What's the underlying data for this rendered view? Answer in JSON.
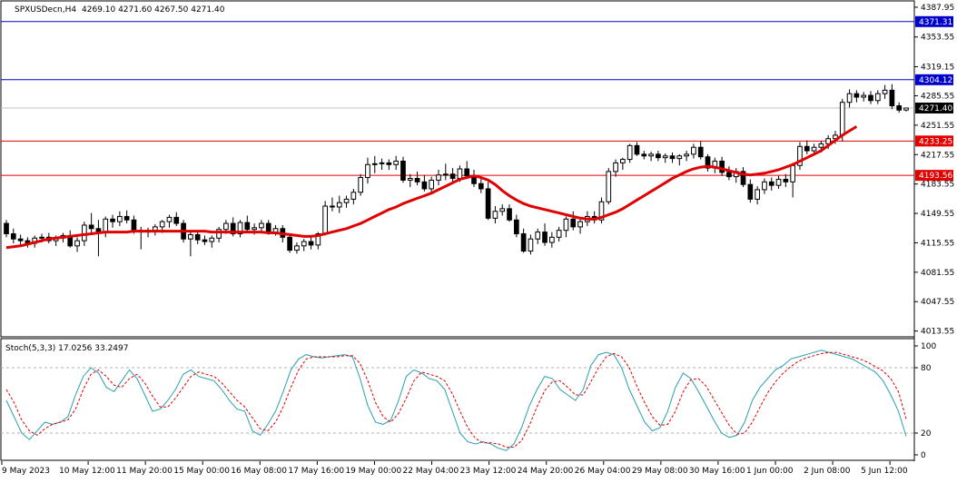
{
  "chart_data": [
    {
      "type": "candlestick",
      "symbol_label": "SPXUSDecn,H4",
      "ohlc_label": "4269.10 4271.60 4267.50 4271.40",
      "ylim": [
        4010,
        4390
      ],
      "y_ticks": [
        "4387.95",
        "4353.55",
        "4319.15",
        "4285.55",
        "4251.55",
        "4217.55",
        "4183.55",
        "4149.55",
        "4115.55",
        "4081.55",
        "4047.55",
        "4013.55"
      ],
      "x_ticks": [
        "9 May 2023",
        "10 May 12:00",
        "11 May 20:00",
        "15 May 00:00",
        "16 May 08:00",
        "17 May 16:00",
        "19 May 00:00",
        "22 May 04:00",
        "23 May 12:00",
        "24 May 20:00",
        "26 May 04:00",
        "29 May 08:00",
        "30 May 16:00",
        "1 Jun 00:00",
        "2 Jun 08:00",
        "5 Jun 12:00"
      ],
      "price_lines": [
        {
          "value": 4371.31,
          "label": "4371.31",
          "color": "#0000cc",
          "label_bg": "#0000cc"
        },
        {
          "value": 4304.12,
          "label": "4304.12",
          "color": "#0000cc",
          "label_bg": "#0000cc"
        },
        {
          "value": 4233.25,
          "label": "4233.25",
          "color": "#e00000",
          "label_bg": "#e00000"
        },
        {
          "value": 4193.56,
          "label": "4193.56",
          "color": "#e00000",
          "label_bg": "#e00000"
        }
      ],
      "current_price": {
        "value": 4271.4,
        "label": "4271.40",
        "color": "#000000"
      },
      "ma_color": "#e00000",
      "candles": [
        [
          4138,
          4142,
          4122,
          4126
        ],
        [
          4126,
          4132,
          4115,
          4120
        ],
        [
          4120,
          4125,
          4112,
          4118
        ],
        [
          4118,
          4122,
          4110,
          4115
        ],
        [
          4115,
          4124,
          4110,
          4121
        ],
        [
          4121,
          4126,
          4116,
          4122
        ],
        [
          4122,
          4127,
          4115,
          4118
        ],
        [
          4118,
          4124,
          4112,
          4121
        ],
        [
          4121,
          4127,
          4116,
          4124
        ],
        [
          4124,
          4130,
          4110,
          4112
        ],
        [
          4112,
          4122,
          4105,
          4118
        ],
        [
          4118,
          4140,
          4112,
          4136
        ],
        [
          4136,
          4150,
          4126,
          4132
        ],
        [
          4132,
          4142,
          4100,
          4128
        ],
        [
          4128,
          4146,
          4122,
          4143
        ],
        [
          4143,
          4148,
          4133,
          4140
        ],
        [
          4140,
          4152,
          4135,
          4146
        ],
        [
          4146,
          4153,
          4138,
          4142
        ],
        [
          4142,
          4147,
          4126,
          4130
        ],
        [
          4130,
          4134,
          4108,
          4128
        ],
        [
          4128,
          4133,
          4122,
          4130
        ],
        [
          4130,
          4137,
          4124,
          4134
        ],
        [
          4134,
          4142,
          4127,
          4140
        ],
        [
          4140,
          4148,
          4133,
          4145
        ],
        [
          4145,
          4151,
          4135,
          4138
        ],
        [
          4138,
          4142,
          4116,
          4120
        ],
        [
          4120,
          4130,
          4100,
          4125
        ],
        [
          4125,
          4128,
          4114,
          4119
        ],
        [
          4119,
          4124,
          4113,
          4117
        ],
        [
          4117,
          4124,
          4110,
          4121
        ],
        [
          4121,
          4134,
          4116,
          4131
        ],
        [
          4131,
          4142,
          4126,
          4138
        ],
        [
          4138,
          4145,
          4123,
          4126
        ],
        [
          4126,
          4142,
          4122,
          4139
        ],
        [
          4139,
          4147,
          4128,
          4131
        ],
        [
          4131,
          4138,
          4125,
          4133
        ],
        [
          4133,
          4142,
          4128,
          4138
        ],
        [
          4138,
          4142,
          4125,
          4128
        ],
        [
          4128,
          4136,
          4124,
          4132
        ],
        [
          4132,
          4136,
          4116,
          4122
        ],
        [
          4122,
          4126,
          4104,
          4107
        ],
        [
          4107,
          4116,
          4103,
          4112
        ],
        [
          4112,
          4120,
          4106,
          4117
        ],
        [
          4117,
          4124,
          4108,
          4113
        ],
        [
          4113,
          4128,
          4108,
          4126
        ],
        [
          4126,
          4164,
          4124,
          4158
        ],
        [
          4158,
          4168,
          4152,
          4157
        ],
        [
          4157,
          4170,
          4150,
          4162
        ],
        [
          4162,
          4170,
          4156,
          4166
        ],
        [
          4166,
          4178,
          4160,
          4174
        ],
        [
          4174,
          4195,
          4170,
          4191
        ],
        [
          4191,
          4214,
          4184,
          4206
        ],
        [
          4206,
          4216,
          4196,
          4207
        ],
        [
          4207,
          4213,
          4200,
          4208
        ],
        [
          4208,
          4212,
          4200,
          4206
        ],
        [
          4206,
          4216,
          4200,
          4210
        ],
        [
          4210,
          4215,
          4185,
          4188
        ],
        [
          4188,
          4195,
          4180,
          4190
        ],
        [
          4190,
          4198,
          4182,
          4186
        ],
        [
          4186,
          4194,
          4175,
          4178
        ],
        [
          4178,
          4192,
          4174,
          4188
        ],
        [
          4188,
          4200,
          4182,
          4194
        ],
        [
          4194,
          4207,
          4188,
          4195
        ],
        [
          4195,
          4202,
          4185,
          4190
        ],
        [
          4190,
          4205,
          4186,
          4201
        ],
        [
          4201,
          4210,
          4192,
          4193
        ],
        [
          4193,
          4200,
          4180,
          4184
        ],
        [
          4184,
          4190,
          4173,
          4178
        ],
        [
          4178,
          4186,
          4142,
          4144
        ],
        [
          4144,
          4158,
          4138,
          4152
        ],
        [
          4152,
          4160,
          4147,
          4155
        ],
        [
          4155,
          4160,
          4140,
          4142
        ],
        [
          4142,
          4148,
          4122,
          4126
        ],
        [
          4126,
          4132,
          4104,
          4106
        ],
        [
          4106,
          4125,
          4102,
          4120
        ],
        [
          4120,
          4132,
          4114,
          4128
        ],
        [
          4128,
          4138,
          4112,
          4116
        ],
        [
          4116,
          4128,
          4110,
          4122
        ],
        [
          4122,
          4134,
          4117,
          4130
        ],
        [
          4130,
          4146,
          4122,
          4143
        ],
        [
          4143,
          4152,
          4130,
          4134
        ],
        [
          4134,
          4143,
          4126,
          4140
        ],
        [
          4140,
          4152,
          4135,
          4146
        ],
        [
          4146,
          4152,
          4138,
          4142
        ],
        [
          4142,
          4168,
          4138,
          4163
        ],
        [
          4163,
          4202,
          4160,
          4198
        ],
        [
          4198,
          4212,
          4192,
          4208
        ],
        [
          4208,
          4214,
          4200,
          4212
        ],
        [
          4212,
          4230,
          4208,
          4228
        ],
        [
          4228,
          4232,
          4216,
          4218
        ],
        [
          4218,
          4222,
          4212,
          4216
        ],
        [
          4216,
          4221,
          4210,
          4218
        ],
        [
          4218,
          4222,
          4210,
          4214
        ],
        [
          4214,
          4219,
          4208,
          4216
        ],
        [
          4216,
          4220,
          4208,
          4213
        ],
        [
          4213,
          4218,
          4205,
          4216
        ],
        [
          4216,
          4222,
          4210,
          4218
        ],
        [
          4218,
          4230,
          4213,
          4226
        ],
        [
          4226,
          4233,
          4212,
          4215
        ],
        [
          4215,
          4218,
          4198,
          4202
        ],
        [
          4202,
          4214,
          4196,
          4210
        ],
        [
          4210,
          4215,
          4193,
          4197
        ],
        [
          4197,
          4204,
          4188,
          4192
        ],
        [
          4192,
          4202,
          4185,
          4198
        ],
        [
          4198,
          4203,
          4180,
          4183
        ],
        [
          4183,
          4189,
          4162,
          4166
        ],
        [
          4166,
          4181,
          4160,
          4177
        ],
        [
          4177,
          4190,
          4172,
          4186
        ],
        [
          4186,
          4191,
          4176,
          4182
        ],
        [
          4182,
          4193,
          4178,
          4189
        ],
        [
          4189,
          4195,
          4180,
          4186
        ],
        [
          4186,
          4208,
          4168,
          4205
        ],
        [
          4205,
          4232,
          4200,
          4227
        ],
        [
          4227,
          4234,
          4218,
          4222
        ],
        [
          4222,
          4230,
          4217,
          4226
        ],
        [
          4226,
          4233,
          4220,
          4230
        ],
        [
          4230,
          4240,
          4224,
          4236
        ],
        [
          4236,
          4245,
          4230,
          4240
        ],
        [
          4240,
          4282,
          4233,
          4278
        ],
        [
          4278,
          4293,
          4272,
          4288
        ],
        [
          4288,
          4292,
          4278,
          4284
        ],
        [
          4284,
          4290,
          4279,
          4286
        ],
        [
          4286,
          4291,
          4276,
          4280
        ],
        [
          4280,
          4292,
          4276,
          4288
        ],
        [
          4288,
          4298,
          4282,
          4292
        ],
        [
          4292,
          4299,
          4270,
          4274
        ],
        [
          4274,
          4278,
          4266,
          4269
        ],
        [
          4269.1,
          4271.6,
          4267.5,
          4271.4
        ]
      ],
      "ma": [
        4110,
        4111,
        4112,
        4114,
        4116,
        4118,
        4120,
        4121,
        4122,
        4123,
        4124,
        4125,
        4126,
        4127,
        4128,
        4128,
        4128,
        4128,
        4129,
        4129,
        4129,
        4129,
        4129,
        4129,
        4129,
        4129,
        4129,
        4129,
        4129,
        4128,
        4128,
        4128,
        4128,
        4128,
        4128,
        4128,
        4128,
        4127,
        4127,
        4126,
        4125,
        4124,
        4123,
        4123,
        4124,
        4126,
        4128,
        4130,
        4132,
        4135,
        4138,
        4142,
        4146,
        4150,
        4154,
        4157,
        4161,
        4164,
        4167,
        4170,
        4173,
        4177,
        4181,
        4185,
        4189,
        4191,
        4193,
        4191,
        4188,
        4183,
        4176,
        4170,
        4165,
        4161,
        4158,
        4156,
        4154,
        4152,
        4150,
        4148,
        4146,
        4144,
        4143,
        4143,
        4145,
        4148,
        4151,
        4155,
        4160,
        4165,
        4170,
        4175,
        4180,
        4185,
        4190,
        4194,
        4198,
        4201,
        4203,
        4204,
        4203,
        4201,
        4199,
        4197,
        4195,
        4194,
        4195,
        4196,
        4198,
        4200,
        4203,
        4206,
        4210,
        4214,
        4218,
        4222,
        4228,
        4234,
        4240,
        4245,
        4250
      ],
      "ma_start_index": 0
    },
    {
      "type": "line",
      "indicator_label": "Stoch(5,3,3) 17.0256 33.2497",
      "ylim": [
        0,
        100
      ],
      "y_ticks": [
        "100",
        "80",
        "20",
        "0"
      ],
      "levels": [
        80,
        20
      ],
      "series": [
        {
          "color": "#2a9fb0",
          "dash": false,
          "values": [
            50,
            35,
            20,
            14,
            22,
            30,
            28,
            30,
            35,
            55,
            72,
            80,
            75,
            62,
            58,
            68,
            78,
            70,
            55,
            40,
            42,
            50,
            60,
            74,
            78,
            72,
            70,
            68,
            60,
            50,
            42,
            40,
            22,
            18,
            28,
            40,
            58,
            78,
            88,
            92,
            90,
            89,
            90,
            91,
            92,
            90,
            70,
            45,
            30,
            28,
            32,
            50,
            72,
            78,
            75,
            70,
            68,
            60,
            40,
            20,
            12,
            10,
            12,
            10,
            6,
            4,
            10,
            25,
            45,
            60,
            72,
            70,
            60,
            55,
            50,
            60,
            82,
            92,
            94,
            92,
            80,
            60,
            45,
            30,
            22,
            25,
            40,
            62,
            75,
            70,
            58,
            45,
            32,
            20,
            16,
            18,
            30,
            50,
            62,
            70,
            78,
            82,
            88,
            90,
            92,
            94,
            96,
            94,
            92,
            90,
            88,
            84,
            80,
            76,
            68,
            55,
            40,
            17
          ]
        },
        {
          "color": "#e00000",
          "dash": true,
          "values": [
            60,
            48,
            32,
            22,
            18,
            24,
            28,
            30,
            32,
            42,
            60,
            74,
            78,
            72,
            64,
            62,
            70,
            74,
            66,
            54,
            44,
            44,
            52,
            62,
            72,
            76,
            74,
            72,
            66,
            58,
            50,
            44,
            34,
            24,
            22,
            30,
            44,
            62,
            78,
            88,
            90,
            90,
            90,
            90,
            91,
            91,
            84,
            68,
            48,
            35,
            30,
            38,
            52,
            68,
            76,
            74,
            72,
            68,
            56,
            40,
            25,
            15,
            11,
            11,
            10,
            7,
            7,
            13,
            27,
            44,
            59,
            67,
            68,
            62,
            55,
            55,
            67,
            80,
            90,
            93,
            90,
            80,
            63,
            48,
            35,
            27,
            28,
            40,
            58,
            69,
            70,
            63,
            51,
            39,
            27,
            19,
            20,
            30,
            44,
            57,
            67,
            75,
            81,
            86,
            89,
            91,
            93,
            94,
            94,
            92,
            90,
            88,
            85,
            81,
            77,
            70,
            58,
            33
          ]
        }
      ]
    }
  ]
}
